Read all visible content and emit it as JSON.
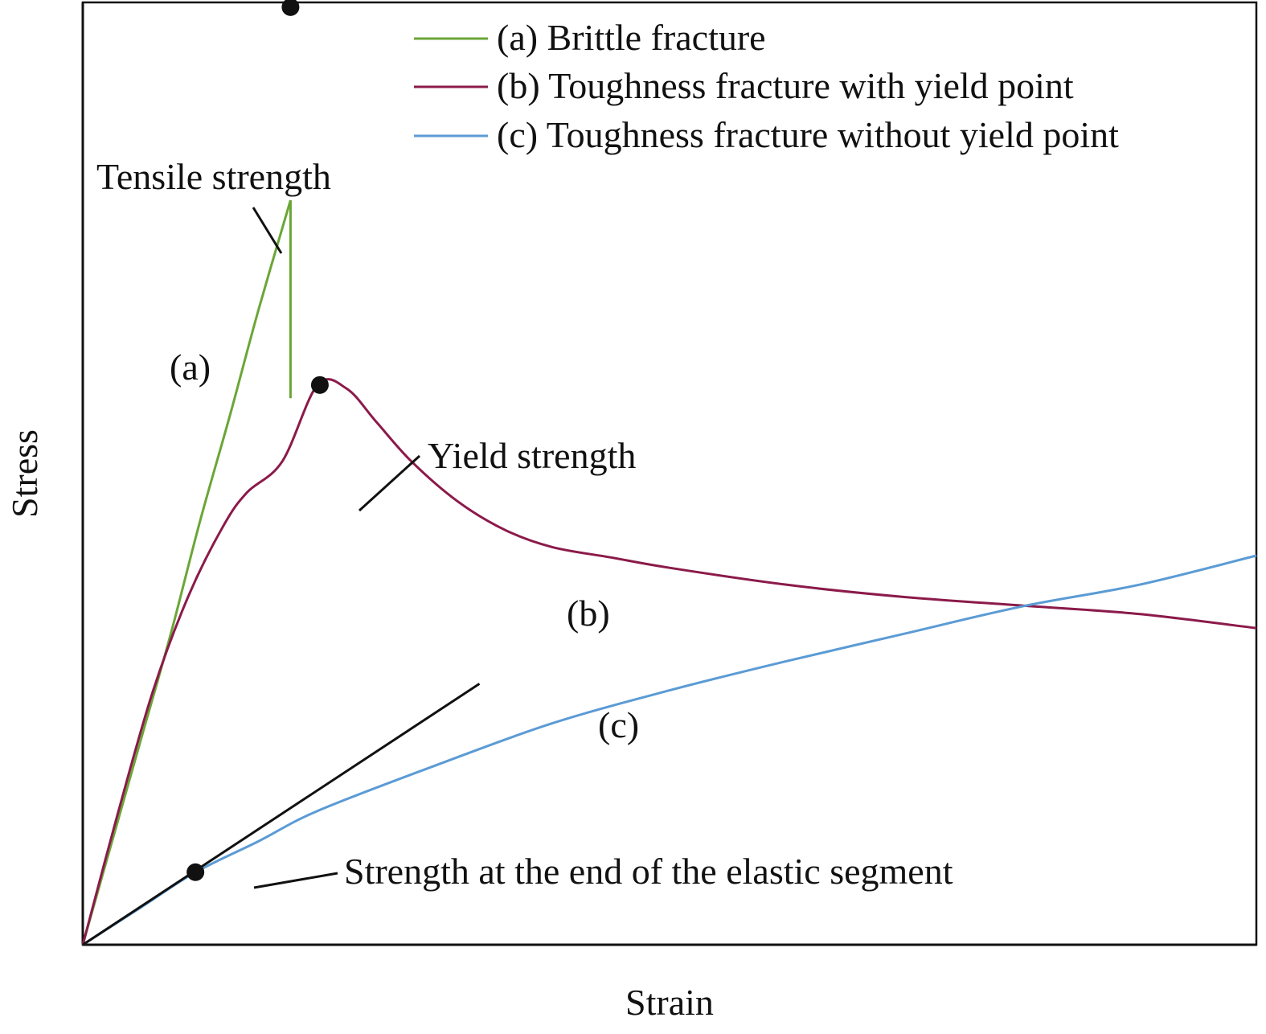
{
  "chart_data": {
    "type": "line",
    "title": "",
    "xlabel": "Strain",
    "ylabel": "Stress",
    "xlim": [
      0,
      100
    ],
    "ylim": [
      0,
      100
    ],
    "grid": false,
    "legend_position": "top-right",
    "series": [
      {
        "name": "(a) Brittle fracture",
        "label": "(a)",
        "color": "#6aa637",
        "points": [
          [
            0,
            0
          ],
          [
            2.5,
            11
          ],
          [
            5,
            22
          ],
          [
            7.5,
            33
          ],
          [
            10,
            45
          ],
          [
            12.5,
            56
          ],
          [
            15,
            67.5
          ],
          [
            17.7,
            79
          ]
        ],
        "drop_to": [
          17.7,
          58
        ]
      },
      {
        "name": "(b) Toughness fracture with yield point",
        "label": "(b)",
        "color": "#8b1a4a",
        "points": [
          [
            0,
            0
          ],
          [
            3,
            14
          ],
          [
            6,
            27
          ],
          [
            9,
            37
          ],
          [
            12,
            44.5
          ],
          [
            14,
            48
          ],
          [
            17,
            51.3
          ],
          [
            20,
            59.4
          ],
          [
            22.5,
            59
          ],
          [
            25,
            55.5
          ],
          [
            28,
            51.3
          ],
          [
            32,
            47
          ],
          [
            36,
            44
          ],
          [
            40,
            42.2
          ],
          [
            45,
            41.1
          ],
          [
            50,
            40
          ],
          [
            60,
            38.2
          ],
          [
            70,
            36.9
          ],
          [
            80,
            36
          ],
          [
            90,
            35.1
          ],
          [
            100,
            33.6
          ]
        ]
      },
      {
        "name": "(c) Toughness fracture without yield point",
        "label": "(c)",
        "color": "#5b9bd5",
        "points": [
          [
            0,
            0
          ],
          [
            5,
            4
          ],
          [
            9.6,
            7.7
          ],
          [
            15,
            11
          ],
          [
            20,
            14.2
          ],
          [
            30,
            19
          ],
          [
            40,
            23.5
          ],
          [
            50,
            27
          ],
          [
            60,
            30.1
          ],
          [
            70,
            33
          ],
          [
            80,
            35.9
          ],
          [
            90,
            38.2
          ],
          [
            100,
            41.3
          ]
        ]
      }
    ],
    "tangent_line": {
      "points": [
        [
          0,
          0
        ],
        [
          33.8,
          27.7
        ]
      ],
      "color": "#111111"
    },
    "annotations": [
      {
        "text": "Tensile strength",
        "point": [
          17.7,
          99.5
        ]
      },
      {
        "text": "Yield strength",
        "point": [
          20.2,
          59.4
        ]
      },
      {
        "text": "Strength at the end of the elastic segment",
        "point": [
          9.6,
          7.7
        ]
      }
    ]
  }
}
